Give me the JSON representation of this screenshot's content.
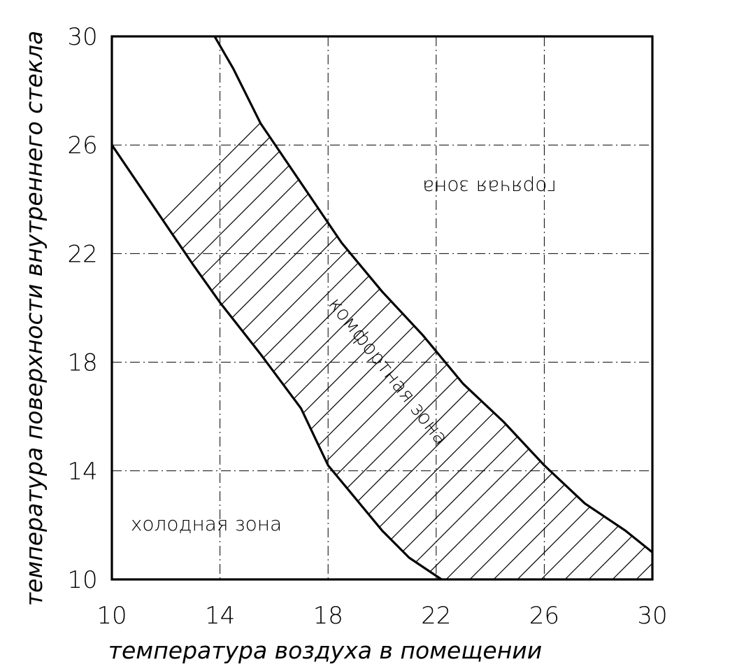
{
  "chart_data": {
    "type": "area",
    "title": "",
    "xlabel": "температура воздуха в помещении",
    "ylabel": "температура поверхности внутреннего стекла",
    "xlim": [
      10,
      30
    ],
    "ylim": [
      10,
      30
    ],
    "x_ticks": [
      "10",
      "14",
      "18",
      "22",
      "26",
      "30"
    ],
    "y_ticks": [
      "30",
      "26",
      "22",
      "18",
      "14",
      "10"
    ],
    "grid": true,
    "series": [
      {
        "role": "lower-boundary",
        "points": [
          [
            10,
            26.0
          ],
          [
            11.5,
            23.8
          ],
          [
            13,
            21.6
          ],
          [
            14,
            20.2
          ],
          [
            15.5,
            18.3
          ],
          [
            17,
            16.3
          ],
          [
            18,
            14.2
          ],
          [
            19,
            13.0
          ],
          [
            20,
            11.8
          ],
          [
            21,
            10.8
          ],
          [
            22.2,
            10.0
          ]
        ]
      },
      {
        "role": "upper-boundary",
        "points": [
          [
            13.8,
            30.0
          ],
          [
            14.5,
            28.8
          ],
          [
            15.5,
            26.8
          ],
          [
            17,
            24.6
          ],
          [
            18.5,
            22.4
          ],
          [
            20,
            20.6
          ],
          [
            21.5,
            19.0
          ],
          [
            23,
            17.2
          ],
          [
            24.5,
            15.8
          ],
          [
            26,
            14.2
          ],
          [
            27.5,
            12.8
          ],
          [
            29,
            11.8
          ],
          [
            30,
            11.0
          ]
        ]
      }
    ],
    "annotations": [
      {
        "text": "горячая зона",
        "x": 24.5,
        "y": 24.5
      },
      {
        "text": "комфортная зона",
        "x": 20.5,
        "y": 17.5
      },
      {
        "text": "холодная зона",
        "x": 14,
        "y": 12
      }
    ]
  }
}
